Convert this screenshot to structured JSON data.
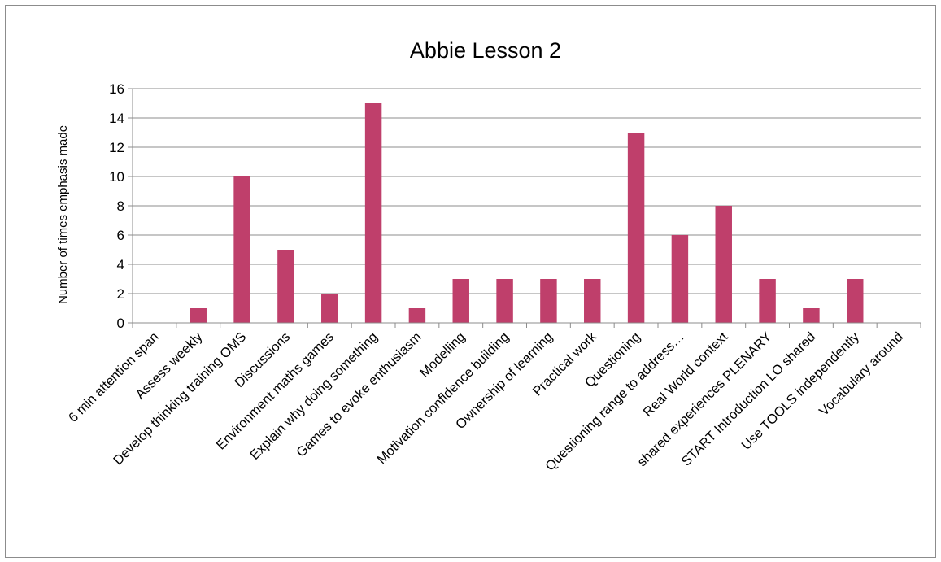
{
  "chart_data": {
    "type": "bar",
    "title": "Abbie Lesson 2",
    "xlabel": "",
    "ylabel": "Number of times emphasis made",
    "ylim": [
      0,
      16
    ],
    "yticks": [
      0,
      2,
      4,
      6,
      8,
      10,
      12,
      14,
      16
    ],
    "grid": true,
    "legend": "none",
    "bar_color": "#bf3f6b",
    "categories": [
      "6 min attention span",
      "Assess weekly",
      "Develop thinking training  OMS",
      "Discussions",
      "Environment maths games",
      "Explain why doing something",
      "Games to evoke enthusiasm",
      "Modelling",
      "Motivation  confidence building",
      "Ownership of learning",
      "Practical work",
      "Questioning",
      "Questioning range to address…",
      "Real World context",
      "shared experiences  PLENARY",
      "START Introduction LO shared",
      "Use TOOLS independently",
      "Vocabulary around"
    ],
    "values": [
      0,
      1,
      10,
      5,
      2,
      15,
      1,
      3,
      3,
      3,
      3,
      13,
      6,
      8,
      3,
      1,
      3,
      0
    ]
  }
}
